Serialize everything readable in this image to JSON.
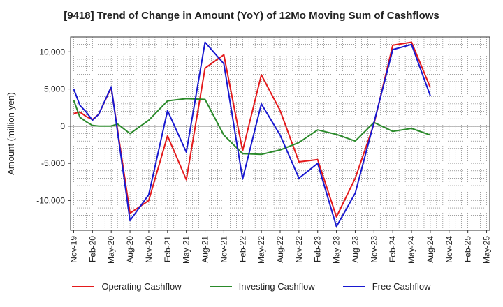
{
  "chart_data": {
    "type": "line",
    "title": "[9418]  Trend of Change in Amount (YoY) of 12Mo Moving Sum of Cashflows",
    "xlabel": "",
    "ylabel": "Amount (million yen)",
    "ylim": [
      -14000,
      12000
    ],
    "yticks": [
      10000,
      5000,
      0,
      -5000,
      -10000
    ],
    "ytick_labels": [
      "10,000",
      "5,000",
      "0",
      "-5,000",
      "-10,000"
    ],
    "xtick_labels": [
      "Nov-19",
      "Feb-20",
      "May-20",
      "Aug-20",
      "Nov-20",
      "Feb-21",
      "May-21",
      "Aug-21",
      "Nov-21",
      "Feb-22",
      "May-22",
      "Aug-22",
      "Nov-22",
      "Feb-23",
      "May-23",
      "Aug-23",
      "Nov-23",
      "Feb-24",
      "May-24",
      "Aug-24",
      "Nov-24",
      "Feb-25",
      "May-25"
    ],
    "n_months": 67,
    "grid": true,
    "legend_position": "bottom",
    "series": [
      {
        "name": "Operating Cashflow",
        "color": "#e41a1c",
        "points": [
          [
            0,
            1700
          ],
          [
            1,
            1900
          ],
          [
            2,
            1300
          ],
          [
            3,
            900
          ],
          [
            4,
            1600
          ],
          [
            6,
            5200
          ],
          [
            9,
            -11700
          ],
          [
            12,
            -10000
          ],
          [
            15,
            -1300
          ],
          [
            18,
            -7200
          ],
          [
            21,
            7800
          ],
          [
            24,
            9600
          ],
          [
            27,
            -3300
          ],
          [
            30,
            6900
          ],
          [
            33,
            2100
          ],
          [
            36,
            -4800
          ],
          [
            39,
            -4500
          ],
          [
            42,
            -12200
          ],
          [
            45,
            -7000
          ],
          [
            48,
            300
          ],
          [
            51,
            10900
          ],
          [
            54,
            11300
          ],
          [
            57,
            5200
          ]
        ]
      },
      {
        "name": "Investing Cashflow",
        "color": "#2a8a2a",
        "points": [
          [
            0,
            3500
          ],
          [
            1,
            1200
          ],
          [
            2,
            600
          ],
          [
            3,
            100
          ],
          [
            4,
            0
          ],
          [
            6,
            0
          ],
          [
            7,
            300
          ],
          [
            9,
            -1000
          ],
          [
            12,
            800
          ],
          [
            15,
            3400
          ],
          [
            18,
            3700
          ],
          [
            21,
            3600
          ],
          [
            24,
            -1200
          ],
          [
            27,
            -3700
          ],
          [
            30,
            -3800
          ],
          [
            33,
            -3200
          ],
          [
            36,
            -2200
          ],
          [
            39,
            -500
          ],
          [
            42,
            -1100
          ],
          [
            45,
            -2000
          ],
          [
            48,
            500
          ],
          [
            51,
            -700
          ],
          [
            54,
            -300
          ],
          [
            57,
            -1200
          ]
        ]
      },
      {
        "name": "Free Cashflow",
        "color": "#1818d0",
        "points": [
          [
            0,
            5000
          ],
          [
            1,
            2800
          ],
          [
            2,
            1900
          ],
          [
            3,
            800
          ],
          [
            4,
            1600
          ],
          [
            6,
            5300
          ],
          [
            9,
            -12700
          ],
          [
            12,
            -9200
          ],
          [
            15,
            2100
          ],
          [
            18,
            -3500
          ],
          [
            21,
            11300
          ],
          [
            24,
            8400
          ],
          [
            27,
            -7100
          ],
          [
            30,
            3000
          ],
          [
            33,
            -1200
          ],
          [
            36,
            -7000
          ],
          [
            39,
            -5000
          ],
          [
            42,
            -13500
          ],
          [
            45,
            -9000
          ],
          [
            48,
            500
          ],
          [
            51,
            10300
          ],
          [
            54,
            11000
          ],
          [
            57,
            4100
          ]
        ]
      }
    ]
  }
}
